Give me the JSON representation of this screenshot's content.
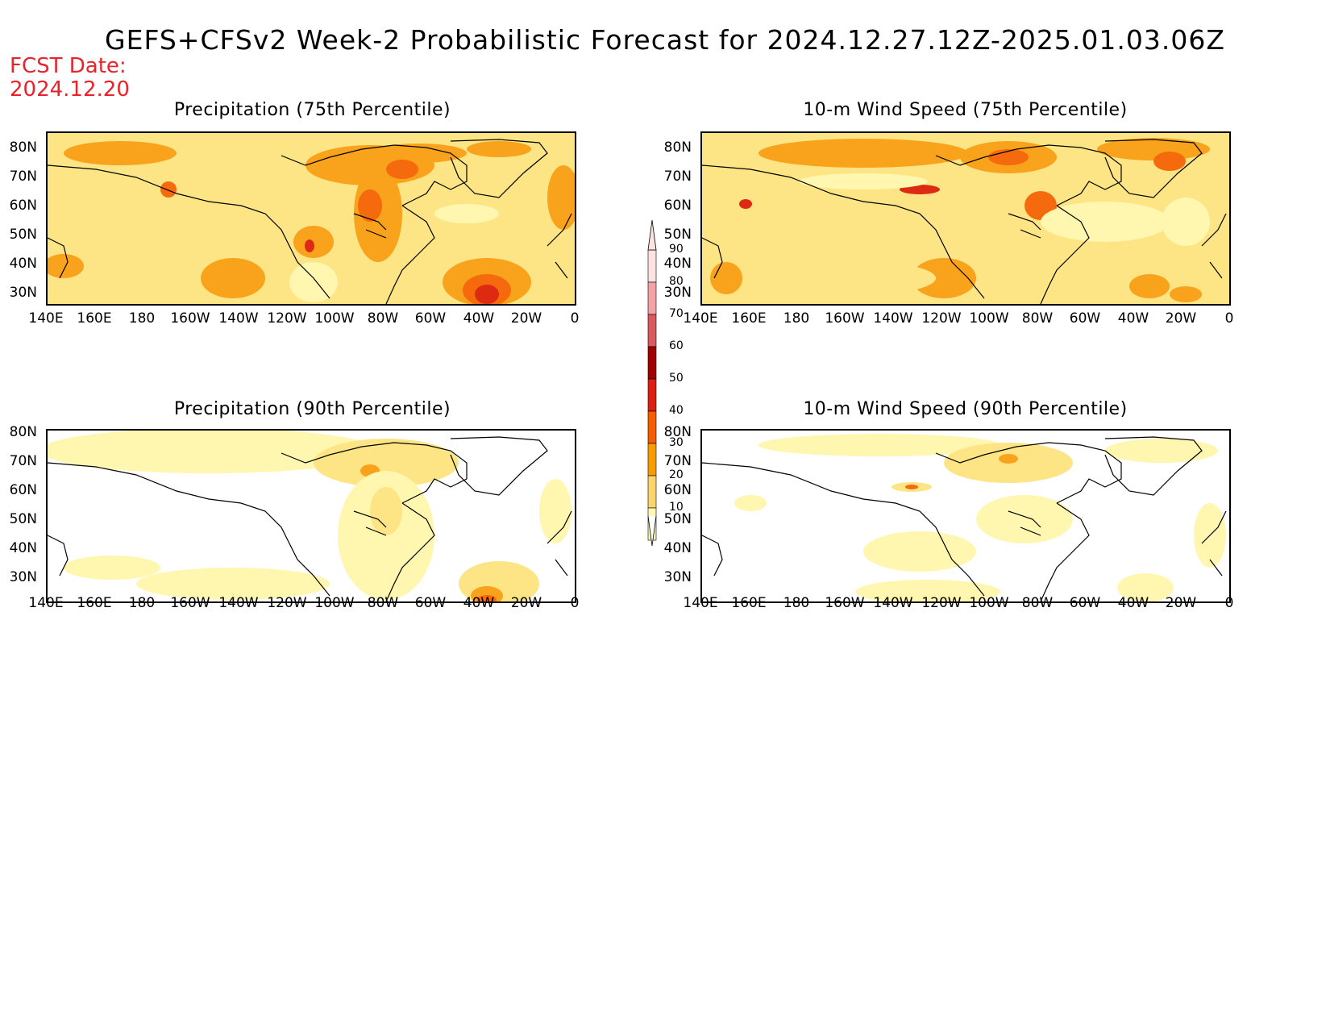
{
  "title": "GEFS+CFSv2 Week-2 Probabilistic Forecast for 2024.12.27.12Z-2025.01.03.06Z",
  "fcst_date": {
    "label": "FCST Date:",
    "value": "2024.12.20"
  },
  "panels": [
    {
      "id": "precip-75",
      "title": "Precipitation (75th Percentile)"
    },
    {
      "id": "wind-75",
      "title": "10-m Wind Speed (75th Percentile)"
    },
    {
      "id": "precip-90",
      "title": "Precipitation (90th Percentile)"
    },
    {
      "id": "wind-90",
      "title": "10-m Wind Speed (90th Percentile)"
    }
  ],
  "axes": {
    "lat_labels": [
      "80N",
      "70N",
      "60N",
      "50N",
      "40N",
      "30N"
    ],
    "lon_labels": [
      "140E",
      "160E",
      "180",
      "160W",
      "140W",
      "120W",
      "100W",
      "80W",
      "60W",
      "40W",
      "20W",
      "0"
    ],
    "lat_range": [
      25,
      85
    ],
    "lon_range_east": [
      140,
      360
    ]
  },
  "colorbar": {
    "labels": [
      "90",
      "80",
      "70",
      "60",
      "50",
      "40",
      "30",
      "20",
      "10"
    ],
    "colors": [
      "#fde2e2",
      "#f3a3a6",
      "#d9595e",
      "#a00000",
      "#dd1e12",
      "#f65c00",
      "#f89c00",
      "#fbd56a",
      "#fff7b4"
    ]
  },
  "palette": {
    "p10": "#fff6b0",
    "p20": "#fde585",
    "p30": "#f9a21c",
    "p40": "#f46a0c",
    "p50": "#dd2a12"
  }
}
